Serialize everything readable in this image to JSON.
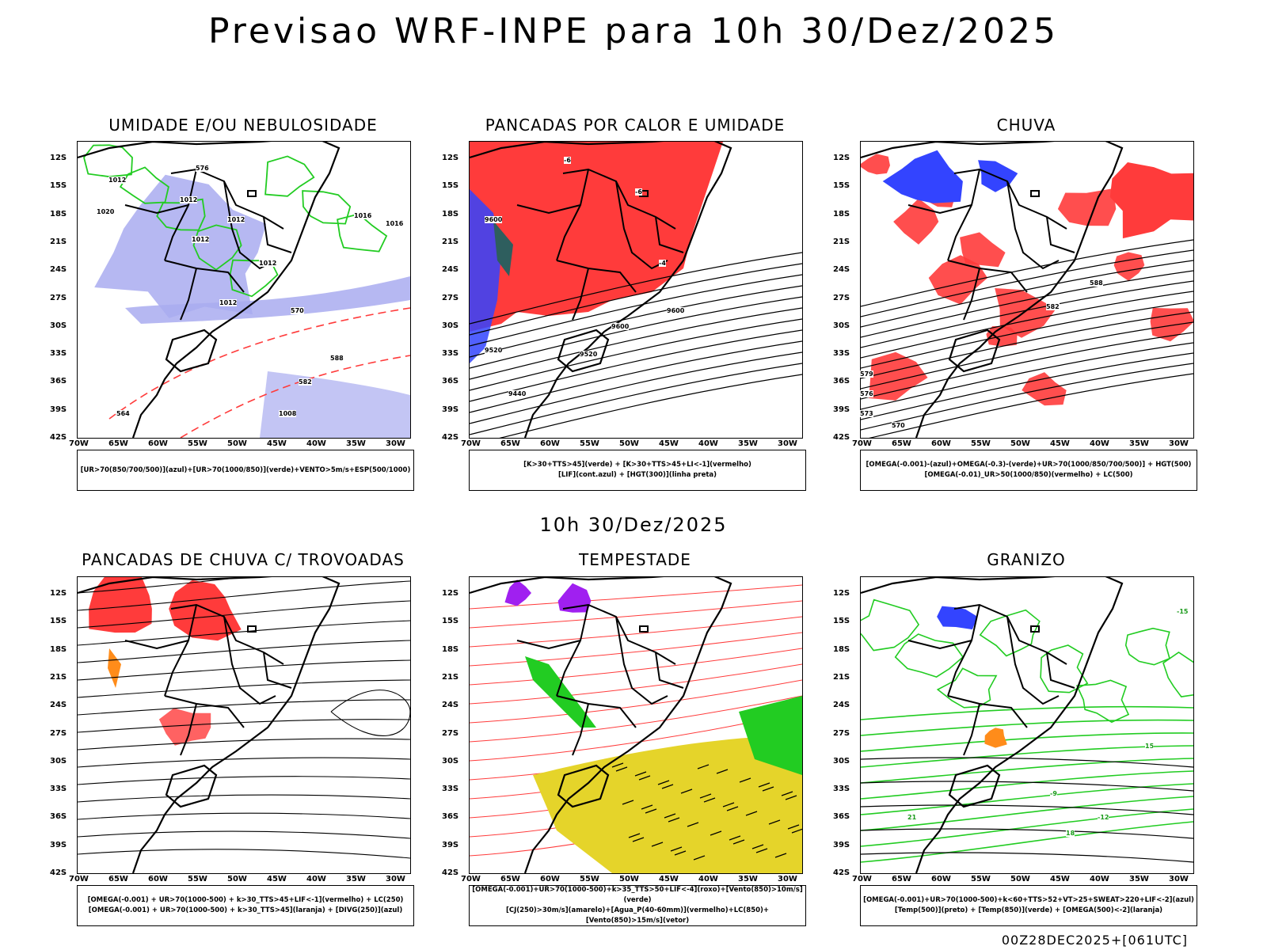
{
  "title": "Previsao WRF-INPE  para 10h 30/Dez/2025",
  "mid_title": "10h 30/Dez/2025",
  "footer": "00Z28DEC2025+[061UTC]",
  "lat_ticks": [
    "12S",
    "15S",
    "18S",
    "21S",
    "24S",
    "27S",
    "30S",
    "33S",
    "36S",
    "39S",
    "42S"
  ],
  "lon_ticks": [
    "70W",
    "65W",
    "60W",
    "55W",
    "50W",
    "45W",
    "40W",
    "35W",
    "30W"
  ],
  "colors": {
    "green": "#22cc22",
    "red": "#ff3b3b",
    "blue": "#3344ff",
    "lavender": "#a9acf0",
    "yellow": "#e5d42a",
    "purple": "#a020f0",
    "orange": "#ff8c1a",
    "teal": "#2e5e5e"
  },
  "panels": [
    {
      "title": "UMIDADE E/OU NEBULOSIDADE",
      "legend": [
        "[UR>70(850/700/500)](azul)+[UR>70(1000/850)](verde)+VENTO>5m/s+ESP(500/1000)"
      ]
    },
    {
      "title": "PANCADAS POR CALOR E UMIDADE",
      "legend": [
        "[K>30+TTS>45](verde) + [K>30+TTS>45+LI<-1](vermelho)",
        "[LIF](cont.azul) + [HGT(300)](linha preta)"
      ]
    },
    {
      "title": "CHUVA",
      "legend": [
        "[OMEGA(-0.001)-(azul)+OMEGA(-0.3)-(verde)+UR>70(1000/850/700/500)] + HGT(500)",
        "[OMEGA(-0.01)_UR>50(1000/850)(vermelho) + LC(500)"
      ]
    },
    {
      "title": "PANCADAS DE CHUVA C/ TROVOADAS",
      "legend": [
        "[OMEGA(-0.001) + UR>70(1000-500) + k>30_TTS>45+LIF<-1](vermelho) + LC(250)",
        "[OMEGA(-0.001) + UR>70(1000-500) + k>30_TTS>45](laranja) + [DIVG(250)](azul)"
      ]
    },
    {
      "title": "TEMPESTADE",
      "legend": [
        "[OMEGA(-0.001)+UR>70(1000-500)+k>35_TTS>50+LIF<-4](roxo)+[Vento(850)>10m/s](verde)",
        "[CJ(250)>30m/s](amarelo)+[Agua_P(40-60mm)](vermelho)+LC(850)+[Vento(850)>15m/s](vetor)"
      ]
    },
    {
      "title": "GRANIZO",
      "legend": [
        "[OMEGA(-0.001)+UR>70(1000-500)+k<60+TTS>52+VT>25+SWEAT>220+LIF<-2](azul)",
        "[Temp(500)](preto) + [Temp(850)](verde) + [OMEGA(500)<-2](laranja)"
      ]
    }
  ],
  "contour_labels": {
    "p1": [
      "1012",
      "1012",
      "1012",
      "1012",
      "1012",
      "1012",
      "1016",
      "1016",
      "1020",
      "1008",
      "570",
      "576",
      "564",
      "582",
      "588"
    ],
    "p2": [
      "9600",
      "9600",
      "9520",
      "9520",
      "9440",
      "9600",
      "-6",
      "-6",
      "-4"
    ],
    "p3": [
      "588",
      "582",
      "579",
      "576",
      "573",
      "570"
    ],
    "p6": [
      "-15",
      "-12",
      "-9",
      "15",
      "18",
      "21"
    ]
  }
}
